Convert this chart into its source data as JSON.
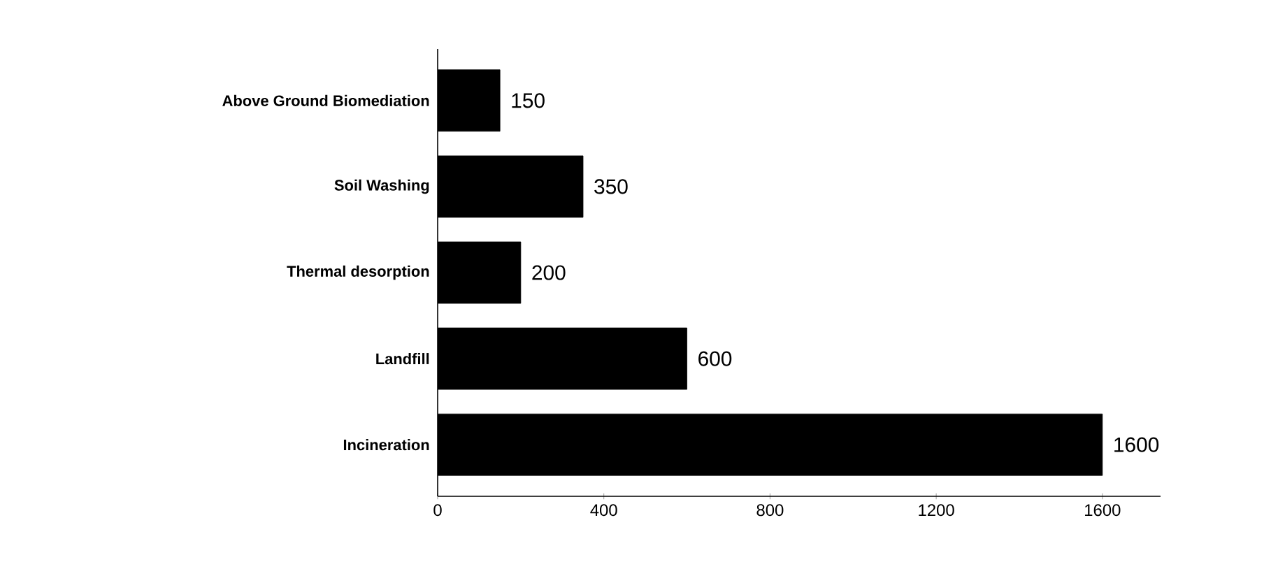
{
  "chart_data": {
    "type": "bar",
    "orientation": "horizontal",
    "categories": [
      "Above Ground Biomediation",
      "Soil Washing",
      "Thermal desorption",
      "Landfill",
      "Incineration"
    ],
    "values": [
      150,
      350,
      200,
      600,
      1600
    ],
    "color": "#000000",
    "xlim": [
      0,
      1740
    ],
    "xticks": [
      0,
      400,
      800,
      1200,
      1600
    ],
    "data_labels": true
  }
}
